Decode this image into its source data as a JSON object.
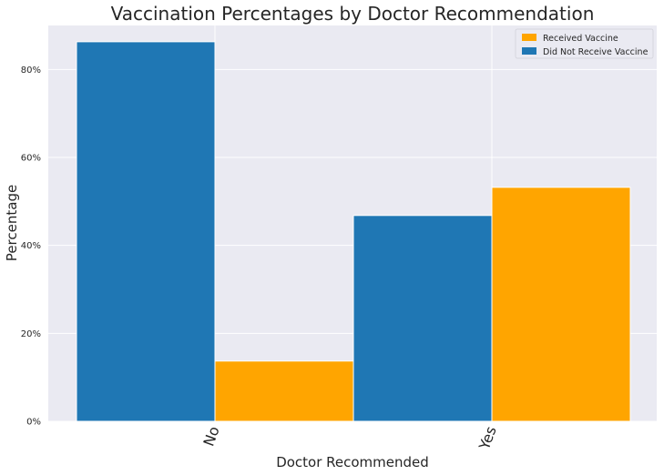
{
  "chart_data": {
    "type": "bar",
    "title": "Vaccination Percentages by Doctor Recommendation",
    "xlabel": "Doctor Recommended",
    "ylabel": "Percentage",
    "categories": [
      "No",
      "Yes"
    ],
    "series": [
      {
        "name": "Did Not Receive Vaccine",
        "values": [
          86.3,
          46.8
        ],
        "color": "#1f77b4"
      },
      {
        "name": "Received Vaccine",
        "values": [
          13.7,
          53.2
        ],
        "color": "#ffa500"
      }
    ],
    "legend_order": [
      1,
      0
    ],
    "ylim": [
      0,
      90
    ],
    "yticks": [
      0,
      20,
      40,
      60,
      80
    ],
    "ytick_labels": [
      "0%",
      "20%",
      "40%",
      "60%",
      "80%"
    ],
    "grid": true,
    "legend_position": "top-right",
    "plot_background": "#eaeaf2",
    "grid_color": "#ffffff"
  }
}
